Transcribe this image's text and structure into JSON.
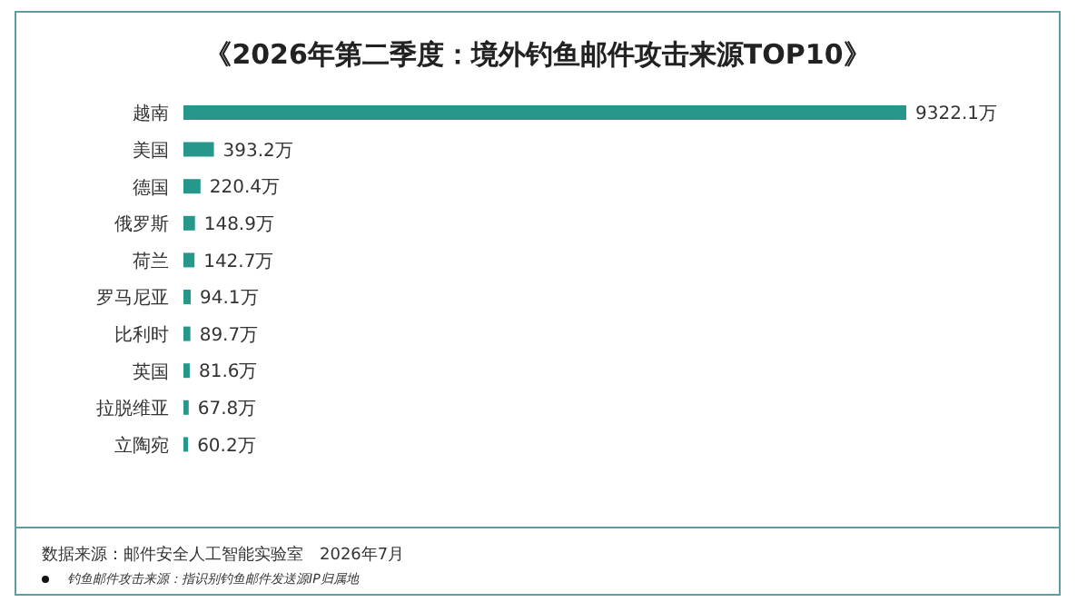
{
  "chart_data": {
    "type": "bar",
    "orientation": "horizontal",
    "title": "《2026年第二季度：境外钓鱼邮件攻击来源TOP10》",
    "categories": [
      "越南",
      "美国",
      "德国",
      "俄罗斯",
      "荷兰",
      "罗马尼亚",
      "比利时",
      "英国",
      "拉脱维亚",
      "立陶宛"
    ],
    "values": [
      9322.1,
      393.2,
      220.4,
      148.9,
      142.7,
      94.1,
      89.7,
      81.6,
      67.8,
      60.2
    ],
    "value_labels": [
      "9322.1万",
      "393.2万",
      "220.4万",
      "148.9万",
      "142.7万",
      "94.1万",
      "89.7万",
      "81.6万",
      "67.8万",
      "60.2万"
    ],
    "color": "#26978a",
    "grid": false,
    "legend": false,
    "annotations": [
      "数据来源：邮件安全人工智能实验室　2026年7月",
      "钓鱼邮件攻击来源：指识别钓鱼邮件发送源IP归属地"
    ]
  }
}
